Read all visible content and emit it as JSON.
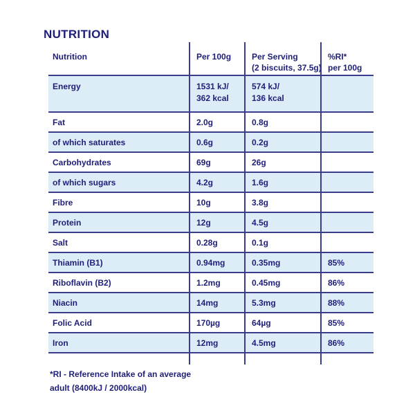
{
  "page": {
    "title": "NUTRITION"
  },
  "table": {
    "header": {
      "nutrient": "Nutrition",
      "per_100g": "Per 100g",
      "per_serving_line1": "Per Serving",
      "per_serving_line2": "(2 biscuits, 37.5g)",
      "ri_line1": "%RI*",
      "ri_line2": "per 100g"
    },
    "rows": [
      {
        "nutrient": "Energy",
        "per_100g": "1531 kJ/",
        "per_100g_2": "362 kcal",
        "per_serving": "574 kJ/",
        "per_serving_2": "136 kcal",
        "ri": "",
        "highlight": true
      },
      {
        "nutrient": "Fat",
        "per_100g": "2.0g",
        "per_serving": "0.8g",
        "ri": "",
        "highlight": false
      },
      {
        "nutrient": "of which saturates",
        "per_100g": "0.6g",
        "per_serving": "0.2g",
        "ri": "",
        "highlight": true
      },
      {
        "nutrient": "Carbohydrates",
        "per_100g": "69g",
        "per_serving": "26g",
        "ri": "",
        "highlight": false
      },
      {
        "nutrient": "of which sugars",
        "per_100g": "4.2g",
        "per_serving": "1.6g",
        "ri": "",
        "highlight": true
      },
      {
        "nutrient": "Fibre",
        "per_100g": "10g",
        "per_serving": "3.8g",
        "ri": "",
        "highlight": false
      },
      {
        "nutrient": "Protein",
        "per_100g": "12g",
        "per_serving": "4.5g",
        "ri": "",
        "highlight": true
      },
      {
        "nutrient": "Salt",
        "per_100g": "0.28g",
        "per_serving": "0.1g",
        "ri": "",
        "highlight": false
      },
      {
        "nutrient": "Thiamin (B1)",
        "per_100g": "0.94mg",
        "per_serving": "0.35mg",
        "ri": "85%",
        "highlight": true
      },
      {
        "nutrient": "Riboflavin (B2)",
        "per_100g": "1.2mg",
        "per_serving": "0.45mg",
        "ri": "86%",
        "highlight": false
      },
      {
        "nutrient": "Niacin",
        "per_100g": "14mg",
        "per_serving": "5.3mg",
        "ri": "88%",
        "highlight": true
      },
      {
        "nutrient": "Folic Acid",
        "per_100g": "170µg",
        "per_serving": "64µg",
        "ri": "85%",
        "highlight": false
      },
      {
        "nutrient": "Iron",
        "per_100g": "12mg",
        "per_serving": "4.5mg",
        "ri": "86%",
        "highlight": true
      }
    ]
  },
  "footnote": {
    "line1": "*RI - Reference Intake of an average",
    "line2": "adult (8400kJ / 2000kcal)"
  },
  "colors": {
    "text": "#1E1E78",
    "line": "#3B3B8C",
    "row_highlight": "#DCEDF8",
    "background": "#FFFFFF"
  }
}
